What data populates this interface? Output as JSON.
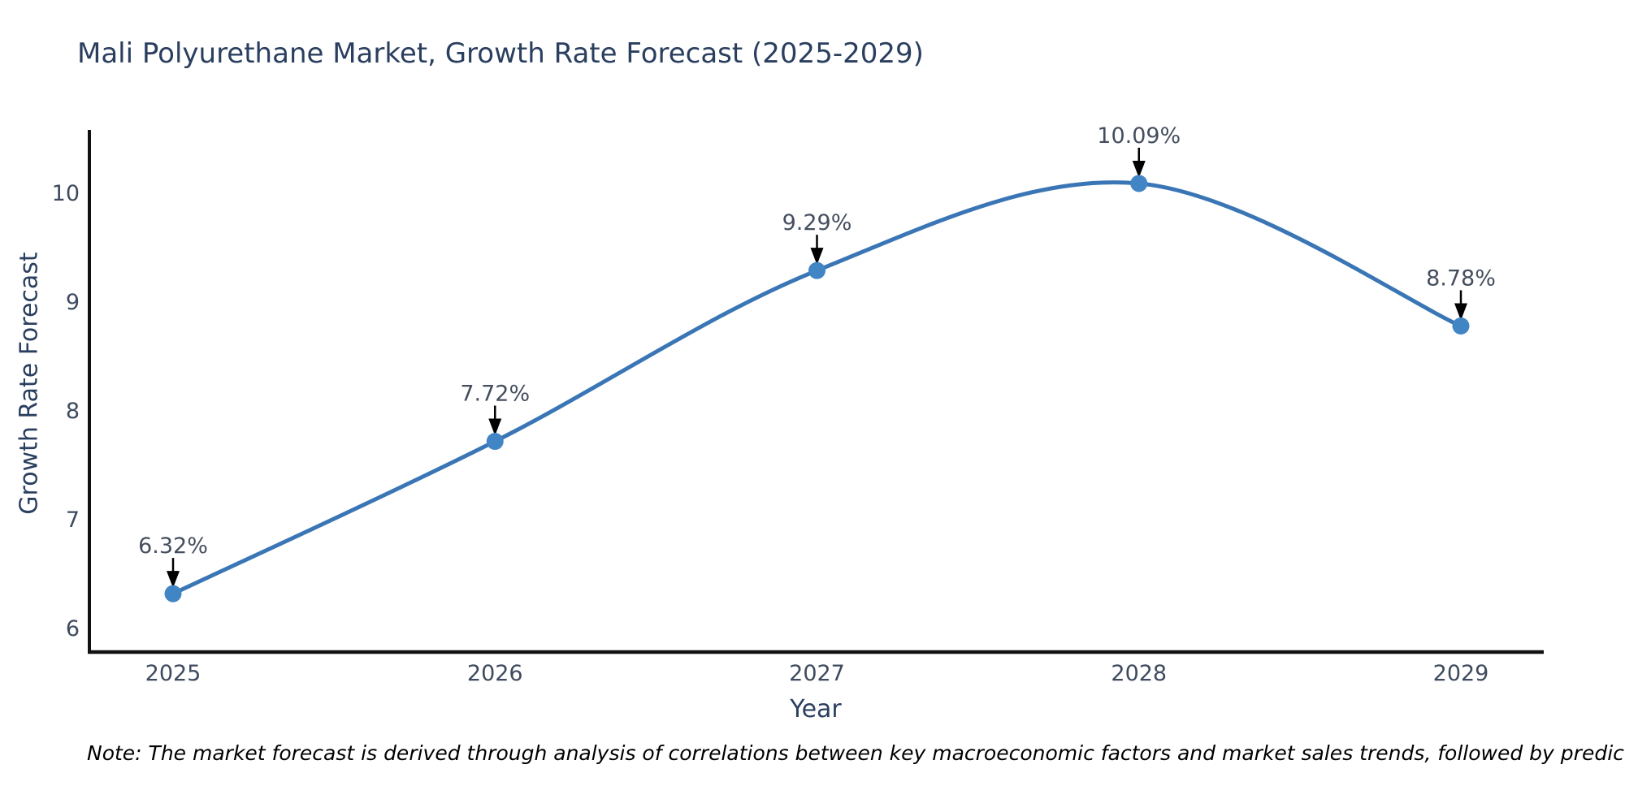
{
  "note": "Note: The market forecast is derived through analysis of correlations between key macroeconomic factors and market sales trends, followed by predictive modeling to project future sales",
  "chart_data": {
    "type": "line",
    "title": "Mali Polyurethane Market, Growth Rate Forecast (2025-2029)",
    "xlabel": "Year",
    "ylabel": "Growth Rate Forecast",
    "x": [
      2025,
      2026,
      2027,
      2028,
      2029
    ],
    "values": [
      6.32,
      7.72,
      9.29,
      10.09,
      8.78
    ],
    "point_labels": [
      "6.32%",
      "7.72%",
      "9.29%",
      "10.09%",
      "8.78%"
    ],
    "yticks": [
      6,
      7,
      8,
      9,
      10
    ],
    "ylim": [
      5.78,
      10.6
    ],
    "grid": false,
    "legend": "none",
    "smooth": true,
    "colors": {
      "line": "#3a76b5",
      "marker": "#4285c4",
      "axis": "#111111",
      "tick_text": "#3e4a5e",
      "annotation_text": "#454e5e",
      "annotation_arrow": "#000000",
      "title_text": "#2a3f5f"
    }
  }
}
